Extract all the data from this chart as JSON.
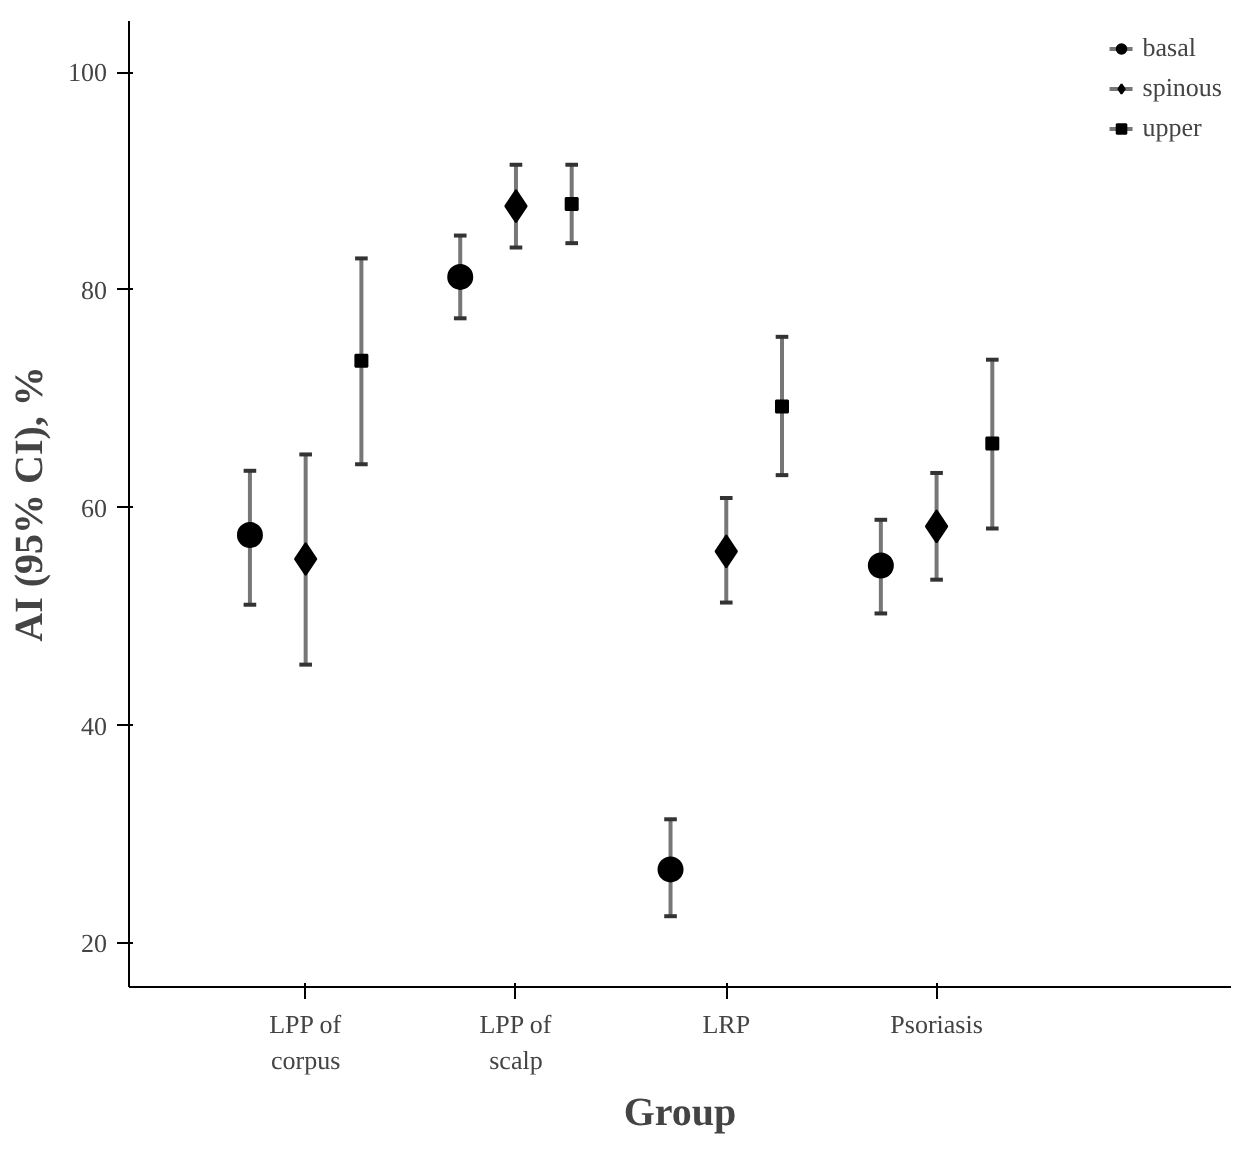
{
  "chart_data": {
    "type": "scatter",
    "xlabel": "Group",
    "ylabel": "AI (95% CI), %",
    "categories": [
      "LPP of\ncorpus",
      "LPP of\nscalp",
      "LRP",
      "Psoriasis"
    ],
    "series": [
      {
        "name": "basal",
        "color": "#000000",
        "marker": "circle",
        "values": [
          57.5,
          81.2,
          26.8,
          54.7
        ],
        "errors": [
          [
            51.1,
            63.4
          ],
          [
            77.4,
            85.0
          ],
          [
            22.5,
            31.4
          ],
          [
            50.3,
            58.9
          ]
        ]
      },
      {
        "name": "spinous",
        "color": "#000000",
        "marker": "diamond",
        "values": [
          55.3,
          87.7,
          56.0,
          58.3
        ],
        "errors": [
          [
            45.6,
            64.9
          ],
          [
            83.9,
            91.5
          ],
          [
            51.3,
            60.9
          ],
          [
            53.4,
            63.2
          ]
        ]
      },
      {
        "name": "upper",
        "color": "#000000",
        "marker": "square",
        "values": [
          73.5,
          87.9,
          69.3,
          65.9
        ],
        "errors": [
          [
            64.0,
            82.9
          ],
          [
            84.3,
            91.5
          ],
          [
            63.0,
            75.7
          ],
          [
            58.1,
            73.6
          ]
        ]
      }
    ],
    "ylim": [
      16,
      104.7
    ],
    "yticks": [
      20,
      40,
      60,
      80,
      100
    ],
    "grid": false,
    "legend": "top right"
  }
}
